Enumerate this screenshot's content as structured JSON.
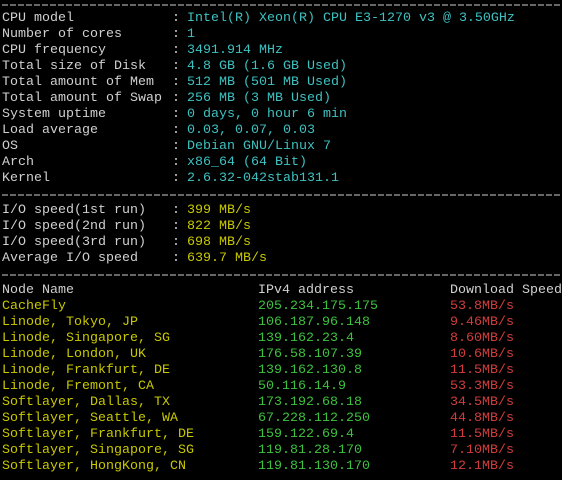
{
  "separator": ":",
  "system": {
    "rows": [
      {
        "label": "CPU model",
        "value": "Intel(R) Xeon(R) CPU E3-1270 v3 @ 3.50GHz"
      },
      {
        "label": "Number of cores",
        "value": "1"
      },
      {
        "label": "CPU frequency",
        "value": "3491.914 MHz"
      },
      {
        "label": "Total size of Disk",
        "value": "4.8 GB (1.6 GB Used)"
      },
      {
        "label": "Total amount of Mem",
        "value": "512 MB (501 MB Used)"
      },
      {
        "label": "Total amount of Swap",
        "value": "256 MB (3 MB Used)"
      },
      {
        "label": "System uptime",
        "value": "0 days, 0 hour 6 min"
      },
      {
        "label": "Load average",
        "value": "0.03, 0.07, 0.03"
      },
      {
        "label": "OS",
        "value": "Debian GNU/Linux 7"
      },
      {
        "label": "Arch",
        "value": "x86_64 (64 Bit)"
      },
      {
        "label": "Kernel",
        "value": "2.6.32-042stab131.1"
      }
    ]
  },
  "io": {
    "rows": [
      {
        "label": "I/O speed(1st run)",
        "value": "399 MB/s"
      },
      {
        "label": "I/O speed(2nd run)",
        "value": "822 MB/s"
      },
      {
        "label": "I/O speed(3rd run)",
        "value": "698 MB/s"
      },
      {
        "label": "Average I/O speed",
        "value": "639.7 MB/s"
      }
    ]
  },
  "network": {
    "header": {
      "node": "Node Name",
      "ip": "IPv4 address",
      "speed": "Download Speed"
    },
    "rows": [
      {
        "node": "CacheFly",
        "ip": "205.234.175.175",
        "speed": "53.8MB/s"
      },
      {
        "node": "Linode, Tokyo, JP",
        "ip": "106.187.96.148",
        "speed": "9.46MB/s"
      },
      {
        "node": "Linode, Singapore, SG",
        "ip": "139.162.23.4",
        "speed": "8.60MB/s"
      },
      {
        "node": "Linode, London, UK",
        "ip": "176.58.107.39",
        "speed": "10.6MB/s"
      },
      {
        "node": "Linode, Frankfurt, DE",
        "ip": "139.162.130.8",
        "speed": "11.5MB/s"
      },
      {
        "node": "Linode, Fremont, CA",
        "ip": "50.116.14.9",
        "speed": "53.3MB/s"
      },
      {
        "node": "Softlayer, Dallas, TX",
        "ip": "173.192.68.18",
        "speed": "34.5MB/s"
      },
      {
        "node": "Softlayer, Seattle, WA",
        "ip": "67.228.112.250",
        "speed": "44.8MB/s"
      },
      {
        "node": "Softlayer, Frankfurt, DE",
        "ip": "159.122.69.4",
        "speed": "11.5MB/s"
      },
      {
        "node": "Softlayer, Singapore, SG",
        "ip": "119.81.28.170",
        "speed": "7.10MB/s"
      },
      {
        "node": "Softlayer, HongKong, CN",
        "ip": "119.81.130.170",
        "speed": "12.1MB/s"
      }
    ]
  }
}
